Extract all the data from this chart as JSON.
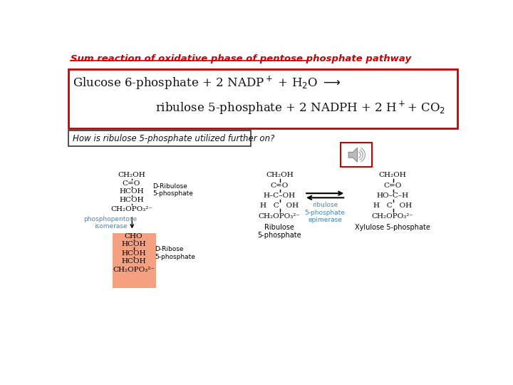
{
  "title": "Sum reaction of oxidative phase of pentose phosphate pathway",
  "title_color": "#cc0000",
  "eq_box_color": "#cc0000",
  "question_box_color": "#333333",
  "bg_color": "#ffffff",
  "enzyme1_color": "#4488bb",
  "enzyme2_color": "#4488bb",
  "highlighted_box_color": "#f5a080",
  "enzyme1_label": "phosphopentose\nisomerase",
  "enzyme2_label": "ribulose\n5-phosphate\nepimerase",
  "speaker_box_color": "#cc0000",
  "question_text": "How is ribulose 5-phosphate utilized further on?"
}
